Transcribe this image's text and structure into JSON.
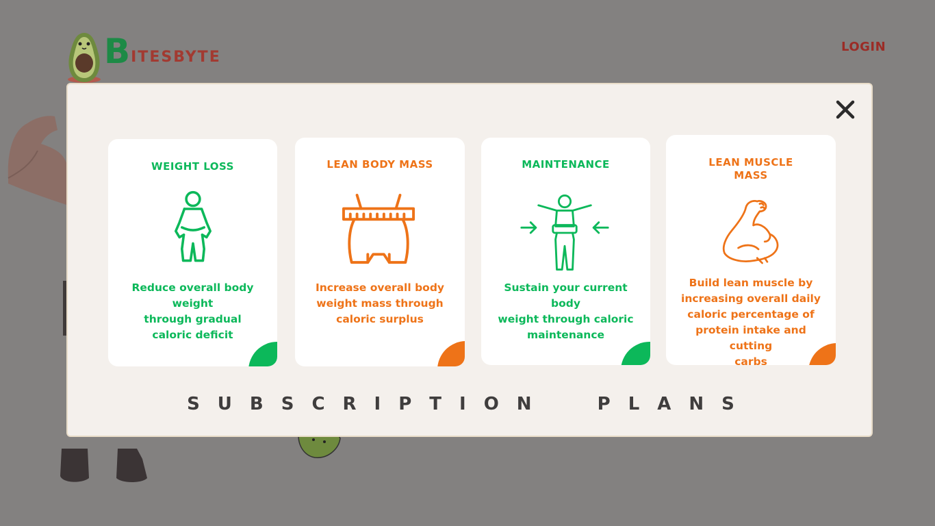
{
  "header": {
    "logo_initial": "B",
    "logo_rest": "ITESBYTE",
    "login_label": "LOGIN"
  },
  "modal": {
    "title": "SUBSCRIPTION  PLANS",
    "close_icon": "close-icon",
    "plans": [
      {
        "title": "WEIGHT LOSS",
        "desc_lines": [
          "Reduce overall body",
          "weight",
          "through gradual",
          "caloric deficit"
        ],
        "color": "#0cb85a",
        "icon": "weight-loss-icon"
      },
      {
        "title": "LEAN BODY MASS",
        "desc_lines": [
          "Increase overall body",
          "weight mass through",
          "caloric surplus"
        ],
        "color": "#ee7318",
        "icon": "waist-measure-icon"
      },
      {
        "title": "MAINTENANCE",
        "desc_lines": [
          "Sustain your current body",
          "weight through caloric",
          "maintenance"
        ],
        "color": "#0cb85a",
        "icon": "body-balance-icon"
      },
      {
        "title_lines": [
          "LEAN MUSCLE",
          "MASS"
        ],
        "desc_lines": [
          "Build lean muscle by",
          "increasing overall daily",
          "caloric percentage of",
          "protein intake and cutting",
          "carbs"
        ],
        "color": "#ee7318",
        "icon": "flexed-bicep-icon"
      }
    ]
  }
}
